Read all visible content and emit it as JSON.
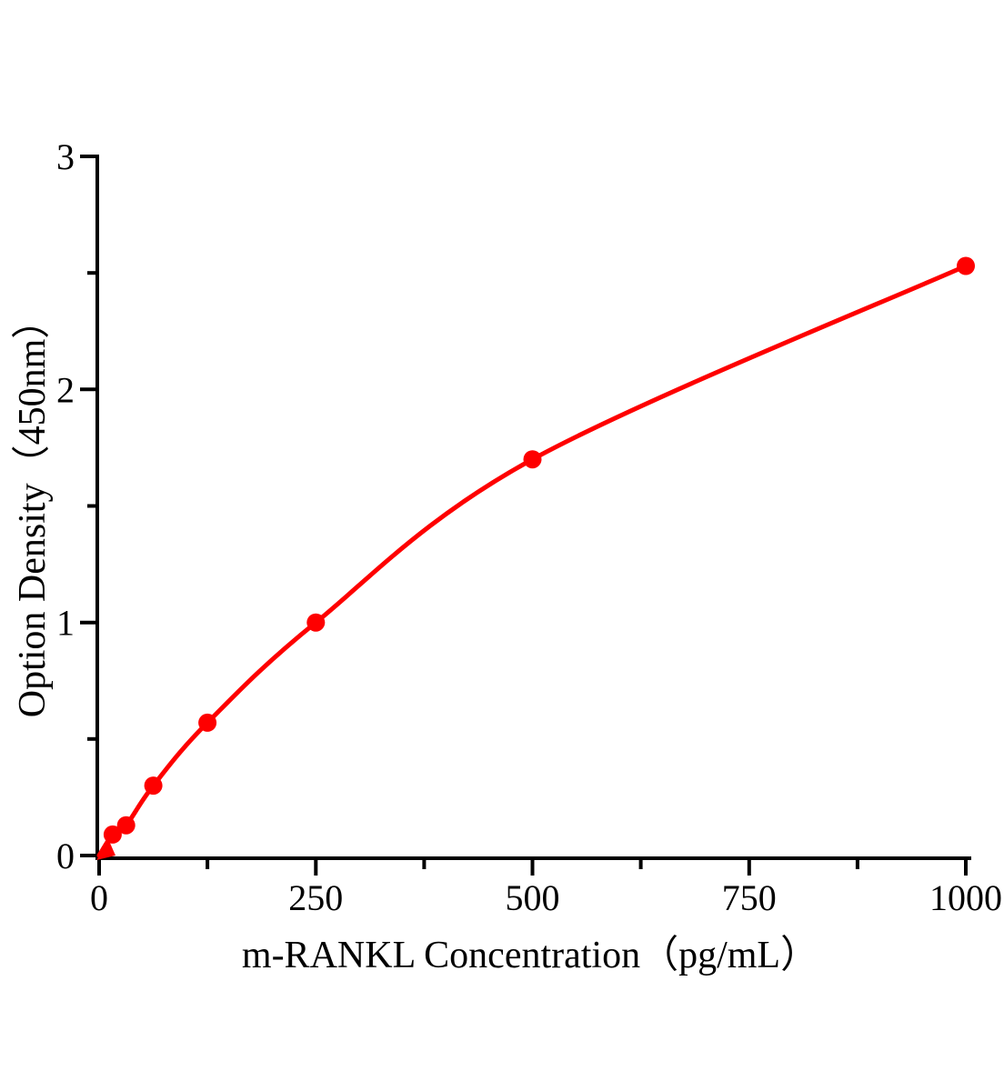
{
  "chart_data": {
    "type": "line",
    "title": "",
    "xlabel": "m-RANKL Concentration（pg/mL）",
    "ylabel": "Option Density（450nm）",
    "x": [
      0,
      15.6,
      31.2,
      62.5,
      125,
      250,
      500,
      1000
    ],
    "y": [
      0.0,
      0.09,
      0.13,
      0.3,
      0.57,
      1.0,
      1.7,
      2.53
    ],
    "xlim": [
      0,
      1000
    ],
    "ylim": [
      0,
      3
    ],
    "x_major_ticks": [
      0,
      250,
      500,
      750,
      1000
    ],
    "x_tick_labels": [
      "0",
      "250",
      "500",
      "750",
      "1000"
    ],
    "x_minor_ticks": [
      125,
      375,
      625,
      875
    ],
    "y_major_ticks": [
      0,
      1,
      2,
      3
    ],
    "y_tick_labels": [
      "0",
      "1",
      "2",
      "3"
    ],
    "y_minor_ticks": [
      0.5,
      1.5,
      2.5
    ],
    "grid": false,
    "legend": false,
    "marker": "circle",
    "smooth": true,
    "line_color": "#fe0000",
    "marker_color": "#fe0000",
    "axis_color": "#000000",
    "text_color": "#000000",
    "background": "#ffffff"
  }
}
